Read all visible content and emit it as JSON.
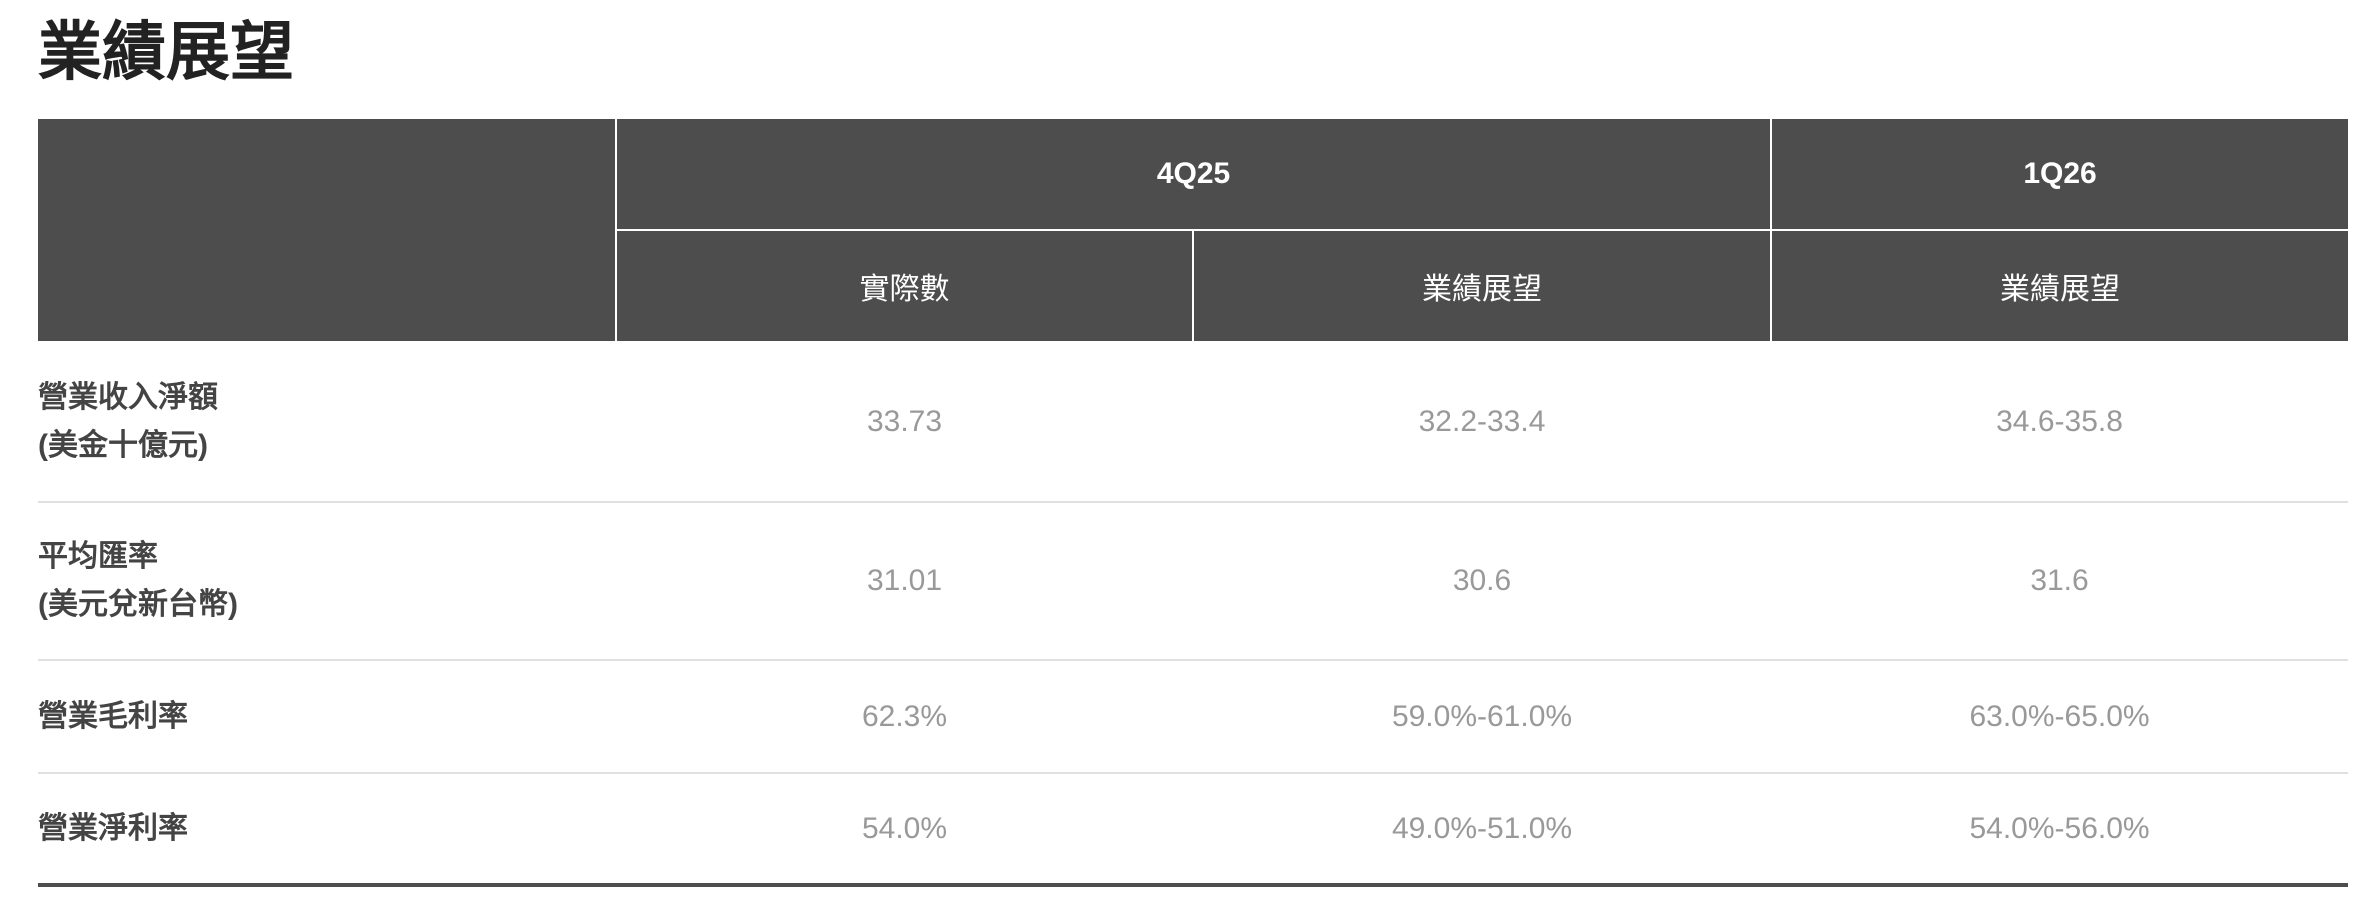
{
  "title": "業績展望",
  "table": {
    "periods": [
      "4Q25",
      "1Q26"
    ],
    "subheaders": [
      "實際數",
      "業績展望",
      "業績展望"
    ],
    "rows": [
      {
        "label": "營業收入淨額",
        "sublabel": "(美金十億元)",
        "values": [
          "33.73",
          "32.2-33.4",
          "34.6-35.8"
        ]
      },
      {
        "label": "平均匯率",
        "sublabel": "(美元兌新台幣)",
        "values": [
          "31.01",
          "30.6",
          "31.6"
        ]
      },
      {
        "label": "營業毛利率",
        "sublabel": "",
        "values": [
          "62.3%",
          "59.0%-61.0%",
          "63.0%-65.0%"
        ]
      },
      {
        "label": "營業淨利率",
        "sublabel": "",
        "values": [
          "54.0%",
          "49.0%-51.0%",
          "54.0%-56.0%"
        ]
      }
    ]
  },
  "colors": {
    "header_bg": "#4d4d4d",
    "label_text": "#444444",
    "value_text": "#999999"
  }
}
